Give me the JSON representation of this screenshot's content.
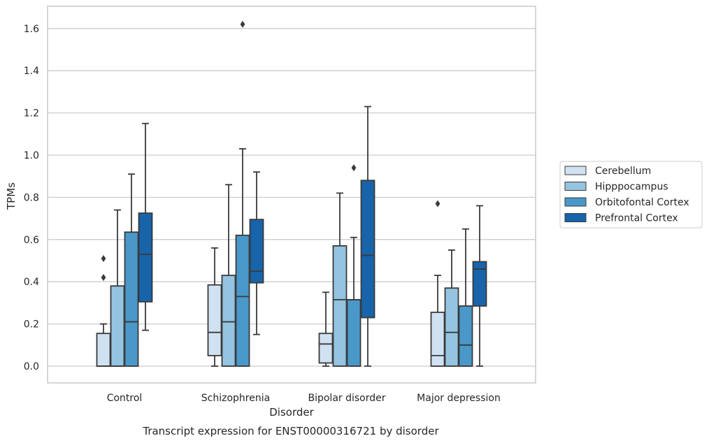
{
  "chart_data": {
    "type": "box",
    "title": "",
    "caption": "Transcript expression for ENST00000316721 by disorder",
    "xlabel": "Disorder",
    "ylabel": "TPMs",
    "ylim": [
      -0.08,
      1.7
    ],
    "yticks": [
      "0.0",
      "0.2",
      "0.4",
      "0.6",
      "0.8",
      "1.0",
      "1.2",
      "1.4",
      "1.6"
    ],
    "grid": true,
    "legend_position": "right",
    "categories": [
      "Control",
      "Schizophrenia",
      "Bipolar disorder",
      "Major depression"
    ],
    "series": [
      {
        "name": "Cerebellum",
        "color": "#d0e1f2",
        "boxes": [
          {
            "whislo": 0.0,
            "q1": 0.0,
            "med": 0.0,
            "q3": 0.155,
            "whishi": 0.2,
            "fliers": [
              0.42,
              0.51
            ]
          },
          {
            "whislo": 0.0,
            "q1": 0.05,
            "med": 0.16,
            "q3": 0.385,
            "whishi": 0.56,
            "fliers": []
          },
          {
            "whislo": 0.0,
            "q1": 0.015,
            "med": 0.105,
            "q3": 0.155,
            "whishi": 0.35,
            "fliers": []
          },
          {
            "whislo": 0.0,
            "q1": 0.0,
            "med": 0.05,
            "q3": 0.255,
            "whishi": 0.43,
            "fliers": [
              0.77
            ]
          }
        ]
      },
      {
        "name": "Hipppocampus",
        "color": "#94c4df",
        "boxes": [
          {
            "whislo": 0.0,
            "q1": 0.0,
            "med": 0.0,
            "q3": 0.38,
            "whishi": 0.74,
            "fliers": []
          },
          {
            "whislo": 0.0,
            "q1": 0.0,
            "med": 0.21,
            "q3": 0.43,
            "whishi": 0.86,
            "fliers": []
          },
          {
            "whislo": 0.0,
            "q1": 0.0,
            "med": 0.315,
            "q3": 0.57,
            "whishi": 0.82,
            "fliers": []
          },
          {
            "whislo": 0.0,
            "q1": 0.0,
            "med": 0.16,
            "q3": 0.37,
            "whishi": 0.55,
            "fliers": []
          }
        ]
      },
      {
        "name": "Orbitofontal Cortex",
        "color": "#4a98c9",
        "boxes": [
          {
            "whislo": 0.0,
            "q1": 0.0,
            "med": 0.21,
            "q3": 0.635,
            "whishi": 0.91,
            "fliers": []
          },
          {
            "whislo": 0.0,
            "q1": 0.0,
            "med": 0.33,
            "q3": 0.62,
            "whishi": 1.03,
            "fliers": [
              1.62
            ]
          },
          {
            "whislo": 0.0,
            "q1": 0.0,
            "med": 0.315,
            "q3": 0.315,
            "whishi": 0.61,
            "fliers": [
              0.94
            ]
          },
          {
            "whislo": 0.0,
            "q1": 0.0,
            "med": 0.1,
            "q3": 0.285,
            "whishi": 0.65,
            "fliers": []
          }
        ]
      },
      {
        "name": "Prefrontal Cortex",
        "color": "#1764ab",
        "boxes": [
          {
            "whislo": 0.17,
            "q1": 0.305,
            "med": 0.53,
            "q3": 0.725,
            "whishi": 1.15,
            "fliers": []
          },
          {
            "whislo": 0.15,
            "q1": 0.395,
            "med": 0.45,
            "q3": 0.695,
            "whishi": 0.92,
            "fliers": []
          },
          {
            "whislo": 0.0,
            "q1": 0.23,
            "med": 0.525,
            "q3": 0.88,
            "whishi": 1.23,
            "fliers": []
          },
          {
            "whislo": 0.0,
            "q1": 0.285,
            "med": 0.46,
            "q3": 0.495,
            "whishi": 0.76,
            "fliers": []
          }
        ]
      }
    ]
  }
}
